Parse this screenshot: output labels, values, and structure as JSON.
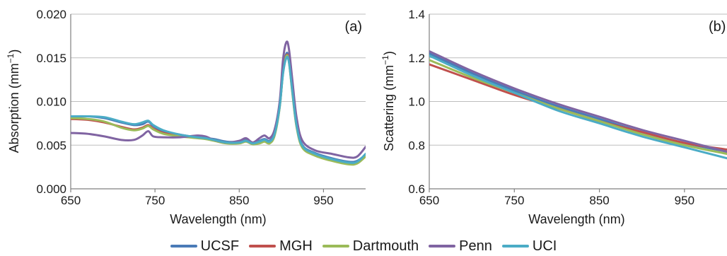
{
  "chart_data": [
    {
      "type": "line",
      "panel_tag": "(a)",
      "xlabel": "Wavelength (nm)",
      "ylabel": "Absorption (mm",
      "ylabel_superscript": "−1",
      "ylabel_suffix": ")",
      "xlim": [
        650,
        1000
      ],
      "ylim": [
        0.0,
        0.02
      ],
      "x_ticks": [
        650,
        750,
        850,
        950
      ],
      "x_tick_labels": [
        "650",
        "750",
        "850",
        "950"
      ],
      "y_ticks": [
        0.0,
        0.005,
        0.01,
        0.015,
        0.02
      ],
      "y_tick_labels": [
        "0.000",
        "0.005",
        "0.010",
        "0.015",
        "0.020"
      ],
      "grid": "horizontal",
      "series": [
        {
          "name": "UCSF",
          "color": "#4a7bb7",
          "points": [
            [
              650,
              0.0082
            ],
            [
              670,
              0.0083
            ],
            [
              690,
              0.0081
            ],
            [
              710,
              0.0076
            ],
            [
              725,
              0.0073
            ],
            [
              735,
              0.0074
            ],
            [
              742,
              0.0077
            ],
            [
              748,
              0.0072
            ],
            [
              760,
              0.0066
            ],
            [
              780,
              0.0062
            ],
            [
              800,
              0.0059
            ],
            [
              810,
              0.0058
            ],
            [
              820,
              0.0057
            ],
            [
              835,
              0.0054
            ],
            [
              850,
              0.0054
            ],
            [
              858,
              0.0056
            ],
            [
              866,
              0.0053
            ],
            [
              874,
              0.0055
            ],
            [
              880,
              0.0057
            ],
            [
              886,
              0.0055
            ],
            [
              892,
              0.0064
            ],
            [
              898,
              0.0095
            ],
            [
              902,
              0.0135
            ],
            [
              906,
              0.0155
            ],
            [
              909,
              0.0148
            ],
            [
              913,
              0.0115
            ],
            [
              918,
              0.0075
            ],
            [
              925,
              0.005
            ],
            [
              940,
              0.0041
            ],
            [
              960,
              0.0035
            ],
            [
              980,
              0.0031
            ],
            [
              990,
              0.0032
            ],
            [
              1000,
              0.0039
            ]
          ]
        },
        {
          "name": "MGH",
          "color": "#c0504d",
          "points": [
            [
              650,
              0.008
            ],
            [
              670,
              0.0079
            ],
            [
              690,
              0.0076
            ],
            [
              710,
              0.0071
            ],
            [
              725,
              0.0068
            ],
            [
              735,
              0.007
            ],
            [
              742,
              0.0073
            ],
            [
              748,
              0.0069
            ],
            [
              760,
              0.0064
            ],
            [
              780,
              0.0061
            ],
            [
              800,
              0.0059
            ],
            [
              810,
              0.0058
            ],
            [
              820,
              0.0056
            ],
            [
              835,
              0.0053
            ],
            [
              850,
              0.0053
            ],
            [
              858,
              0.0055
            ],
            [
              866,
              0.0052
            ],
            [
              874,
              0.0053
            ],
            [
              880,
              0.0055
            ],
            [
              886,
              0.0053
            ],
            [
              892,
              0.0062
            ],
            [
              898,
              0.0094
            ],
            [
              902,
              0.0134
            ],
            [
              906,
              0.0153
            ],
            [
              909,
              0.0146
            ],
            [
              913,
              0.0112
            ],
            [
              918,
              0.0072
            ],
            [
              925,
              0.0048
            ],
            [
              940,
              0.0039
            ],
            [
              960,
              0.0033
            ],
            [
              980,
              0.0029
            ],
            [
              990,
              0.003
            ],
            [
              1000,
              0.0038
            ]
          ]
        },
        {
          "name": "Dartmouth",
          "color": "#9bbb59",
          "points": [
            [
              650,
              0.0081
            ],
            [
              670,
              0.008
            ],
            [
              690,
              0.0077
            ],
            [
              710,
              0.007
            ],
            [
              725,
              0.0067
            ],
            [
              735,
              0.0069
            ],
            [
              742,
              0.0072
            ],
            [
              748,
              0.0068
            ],
            [
              760,
              0.0063
            ],
            [
              780,
              0.006
            ],
            [
              800,
              0.0058
            ],
            [
              810,
              0.0057
            ],
            [
              820,
              0.0055
            ],
            [
              835,
              0.0052
            ],
            [
              850,
              0.0052
            ],
            [
              858,
              0.0054
            ],
            [
              866,
              0.0051
            ],
            [
              874,
              0.0052
            ],
            [
              880,
              0.0054
            ],
            [
              886,
              0.0052
            ],
            [
              892,
              0.0061
            ],
            [
              898,
              0.0093
            ],
            [
              902,
              0.0133
            ],
            [
              906,
              0.0152
            ],
            [
              909,
              0.0145
            ],
            [
              913,
              0.011
            ],
            [
              918,
              0.0071
            ],
            [
              925,
              0.0047
            ],
            [
              940,
              0.0038
            ],
            [
              960,
              0.0032
            ],
            [
              980,
              0.0028
            ],
            [
              990,
              0.0029
            ],
            [
              1000,
              0.0037
            ]
          ]
        },
        {
          "name": "Penn",
          "color": "#8064a2",
          "points": [
            [
              650,
              0.0064
            ],
            [
              670,
              0.0063
            ],
            [
              690,
              0.006
            ],
            [
              710,
              0.0056
            ],
            [
              725,
              0.0056
            ],
            [
              735,
              0.0061
            ],
            [
              742,
              0.0066
            ],
            [
              748,
              0.006
            ],
            [
              760,
              0.0059
            ],
            [
              780,
              0.0059
            ],
            [
              800,
              0.0061
            ],
            [
              810,
              0.006
            ],
            [
              820,
              0.0056
            ],
            [
              835,
              0.0053
            ],
            [
              850,
              0.0055
            ],
            [
              858,
              0.0058
            ],
            [
              866,
              0.0053
            ],
            [
              874,
              0.0058
            ],
            [
              880,
              0.0061
            ],
            [
              886,
              0.0058
            ],
            [
              892,
              0.0068
            ],
            [
              898,
              0.01
            ],
            [
              902,
              0.0148
            ],
            [
              906,
              0.0168
            ],
            [
              909,
              0.016
            ],
            [
              913,
              0.0125
            ],
            [
              918,
              0.0082
            ],
            [
              925,
              0.0055
            ],
            [
              940,
              0.0044
            ],
            [
              960,
              0.004
            ],
            [
              980,
              0.0036
            ],
            [
              990,
              0.0037
            ],
            [
              1000,
              0.0048
            ]
          ]
        },
        {
          "name": "UCI",
          "color": "#4bacc6",
          "points": [
            [
              650,
              0.0083
            ],
            [
              670,
              0.0083
            ],
            [
              690,
              0.0082
            ],
            [
              710,
              0.0077
            ],
            [
              725,
              0.0074
            ],
            [
              735,
              0.0076
            ],
            [
              742,
              0.0078
            ],
            [
              748,
              0.0073
            ],
            [
              760,
              0.0067
            ],
            [
              780,
              0.0062
            ],
            [
              800,
              0.0059
            ],
            [
              810,
              0.0058
            ],
            [
              820,
              0.0056
            ],
            [
              835,
              0.0053
            ],
            [
              850,
              0.0053
            ],
            [
              858,
              0.0055
            ],
            [
              866,
              0.0052
            ],
            [
              874,
              0.0054
            ],
            [
              880,
              0.0056
            ],
            [
              886,
              0.0054
            ],
            [
              892,
              0.0063
            ],
            [
              898,
              0.0094
            ],
            [
              902,
              0.0132
            ],
            [
              906,
              0.015
            ],
            [
              909,
              0.0145
            ],
            [
              913,
              0.0112
            ],
            [
              918,
              0.0073
            ],
            [
              925,
              0.0049
            ],
            [
              940,
              0.004
            ],
            [
              960,
              0.0034
            ],
            [
              980,
              0.003
            ],
            [
              990,
              0.0031
            ],
            [
              1000,
              0.004
            ]
          ]
        }
      ]
    },
    {
      "type": "line",
      "panel_tag": "(b)",
      "xlabel": "Wavelength (nm)",
      "ylabel": "Scattering (mm",
      "ylabel_superscript": "−1",
      "ylabel_suffix": ")",
      "xlim": [
        650,
        1000
      ],
      "ylim": [
        0.6,
        1.4
      ],
      "x_ticks": [
        650,
        750,
        850,
        950
      ],
      "x_tick_labels": [
        "650",
        "750",
        "850",
        "950"
      ],
      "y_ticks": [
        0.6,
        0.8,
        1.0,
        1.2,
        1.4
      ],
      "y_tick_labels": [
        "0.6",
        "0.8",
        "1.0",
        "1.2",
        "1.4"
      ],
      "grid": "horizontal",
      "series": [
        {
          "name": "UCSF",
          "color": "#4a7bb7",
          "points": [
            [
              650,
              1.22
            ],
            [
              700,
              1.13
            ],
            [
              750,
              1.05
            ],
            [
              800,
              0.98
            ],
            [
              850,
              0.92
            ],
            [
              900,
              0.86
            ],
            [
              950,
              0.81
            ],
            [
              1000,
              0.77
            ]
          ]
        },
        {
          "name": "MGH",
          "color": "#c0504d",
          "points": [
            [
              650,
              1.17
            ],
            [
              700,
              1.1
            ],
            [
              750,
              1.03
            ],
            [
              800,
              0.97
            ],
            [
              850,
              0.91
            ],
            [
              900,
              0.86
            ],
            [
              950,
              0.81
            ],
            [
              1000,
              0.78
            ]
          ]
        },
        {
          "name": "Dartmouth",
          "color": "#9bbb59",
          "points": [
            [
              650,
              1.19
            ],
            [
              700,
              1.11
            ],
            [
              750,
              1.04
            ],
            [
              800,
              0.97
            ],
            [
              850,
              0.91
            ],
            [
              900,
              0.85
            ],
            [
              950,
              0.8
            ],
            [
              1000,
              0.76
            ]
          ]
        },
        {
          "name": "Penn",
          "color": "#8064a2",
          "points": [
            [
              650,
              1.23
            ],
            [
              700,
              1.14
            ],
            [
              750,
              1.06
            ],
            [
              800,
              0.99
            ],
            [
              850,
              0.93
            ],
            [
              900,
              0.87
            ],
            [
              950,
              0.82
            ],
            [
              1000,
              0.77
            ]
          ]
        },
        {
          "name": "UCI",
          "color": "#4bacc6",
          "points": [
            [
              650,
              1.21
            ],
            [
              700,
              1.12
            ],
            [
              750,
              1.04
            ],
            [
              800,
              0.96
            ],
            [
              850,
              0.9
            ],
            [
              900,
              0.84
            ],
            [
              950,
              0.79
            ],
            [
              1000,
              0.74
            ]
          ]
        }
      ]
    }
  ],
  "legend": [
    {
      "name": "UCSF",
      "color": "#4a7bb7"
    },
    {
      "name": "MGH",
      "color": "#c0504d"
    },
    {
      "name": "Dartmouth",
      "color": "#9bbb59"
    },
    {
      "name": "Penn",
      "color": "#8064a2"
    },
    {
      "name": "UCI",
      "color": "#4bacc6"
    }
  ]
}
